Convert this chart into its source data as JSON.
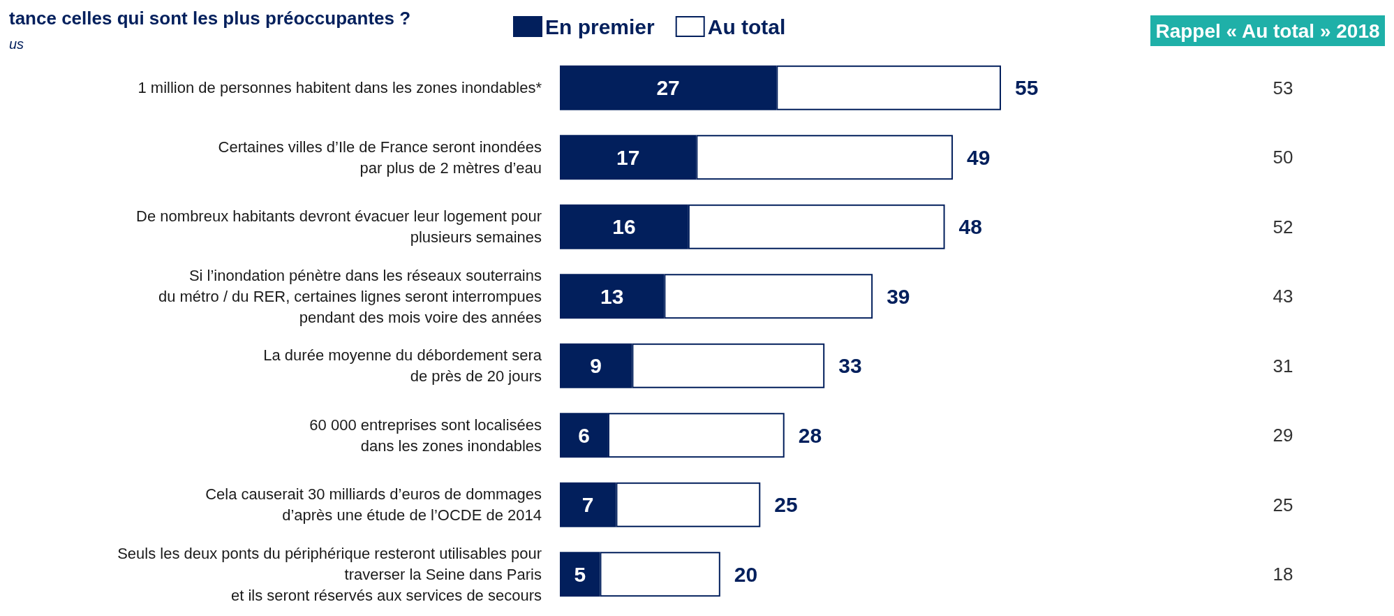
{
  "chart_data": {
    "type": "bar",
    "orientation": "horizontal",
    "stacked": true,
    "title": "tance celles qui sont les plus préoccupantes ?",
    "subtitle": "us",
    "categories": [
      "1 million de personnes habitent dans les zones inondables*",
      "Certaines villes d’Ile de France seront inondées\npar plus de 2 mètres d’eau",
      "De nombreux habitants devront évacuer leur logement pour\nplusieurs semaines",
      "Si l’inondation pénètre dans les réseaux souterrains\ndu métro / du RER, certaines lignes seront interrompues\npendant des mois voire des années",
      "La durée moyenne du débordement sera\nde près de 20 jours",
      "60 000 entreprises sont localisées\ndans les zones inondables",
      "Cela causerait 30 milliards d’euros de dommages\nd’après une étude de l’OCDE de 2014",
      "Seuls les deux ponts du périphérique resteront utilisables pour\ntraverser la Seine dans Paris\net ils seront réservés aux services de secours"
    ],
    "series": [
      {
        "name": "En premier",
        "color": "#021f5c",
        "values": [
          27,
          17,
          16,
          13,
          9,
          6,
          7,
          5
        ],
        "value_labels": [
          "27",
          "17",
          "16",
          "13",
          "9",
          "6",
          "7",
          "5"
        ]
      },
      {
        "name": "Au total",
        "color": "#ffffff",
        "values": [
          28,
          32,
          32,
          26,
          24,
          22,
          18,
          15
        ]
      }
    ],
    "totals": [
      "55",
      "49",
      "48",
      "39",
      "33",
      "28",
      "25",
      "20"
    ],
    "legend": "top",
    "annotations": [
      "Rappel « Au total » 2018",
      "53",
      "50",
      "52",
      "43",
      "31",
      "29",
      "25",
      "18"
    ]
  }
}
